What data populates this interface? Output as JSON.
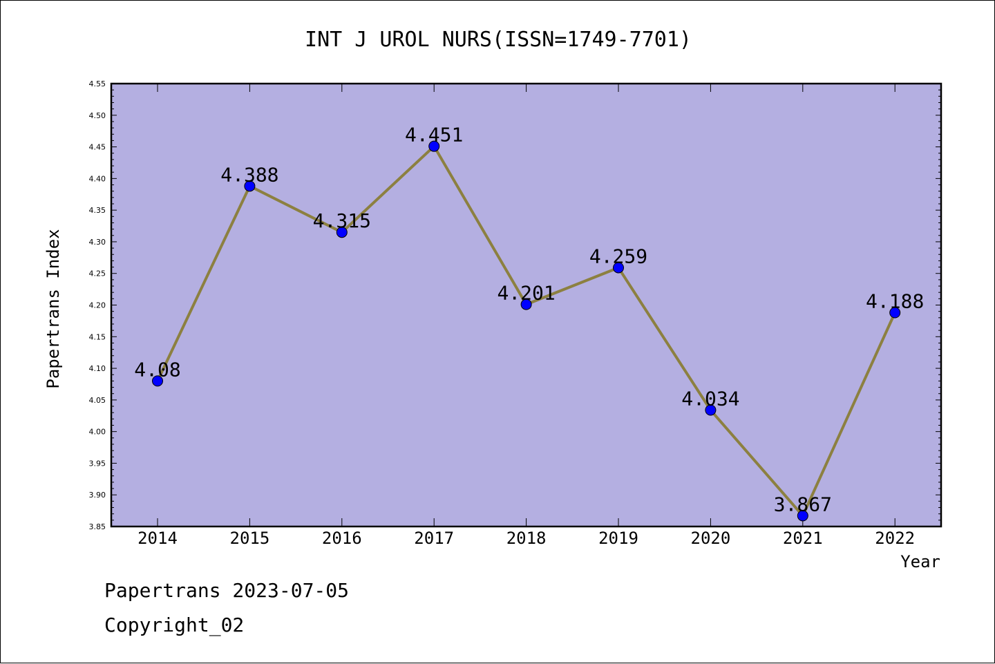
{
  "chart_data": {
    "type": "line",
    "title": "INT J UROL NURS(ISSN=1749-7701)",
    "xlabel": "Year",
    "ylabel": "Papertrans Index",
    "categories": [
      "2014",
      "2015",
      "2016",
      "2017",
      "2018",
      "2019",
      "2020",
      "2021",
      "2022"
    ],
    "series": [
      {
        "values": [
          4.08,
          4.388,
          4.315,
          4.451,
          4.201,
          4.259,
          4.034,
          3.867,
          4.188
        ],
        "labels": [
          "4.08",
          "4.388",
          "4.315",
          "4.451",
          "4.201",
          "4.259",
          "4.034",
          "3.867",
          "4.188"
        ]
      }
    ],
    "ylim": [
      3.85,
      4.55
    ],
    "yticks": [
      "3.85",
      "3.90",
      "3.95",
      "4.00",
      "4.05",
      "4.10",
      "4.15",
      "4.20",
      "4.25",
      "4.30",
      "4.35",
      "4.40",
      "4.45",
      "4.50",
      "4.55"
    ],
    "grid": false,
    "colors": {
      "plot_background": "#b4afe1",
      "line": "#8c8040",
      "marker": "#0000ff"
    }
  },
  "footer": {
    "line1": "Papertrans 2023-07-05",
    "line2": "Copyright_02"
  }
}
